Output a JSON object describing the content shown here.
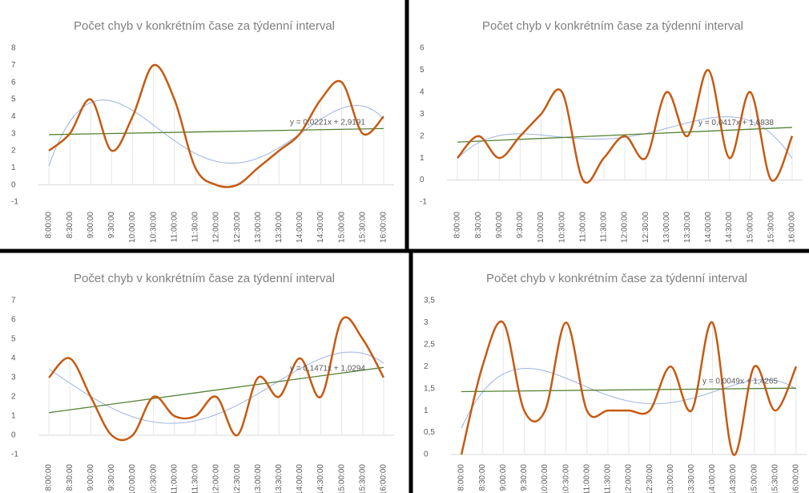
{
  "chart_data": [
    {
      "type": "line",
      "title": "Počet chyb v konkrétním čase za týdenní interval",
      "categories": [
        "8:00:00",
        "8:30:00",
        "9:00:00",
        "9:30:00",
        "10:00:00",
        "10:30:00",
        "11:00:00",
        "11:30:00",
        "12:00:00",
        "12:30:00",
        "13:00:00",
        "13:30:00",
        "14:00:00",
        "14:30:00",
        "15:00:00",
        "15:30:00",
        "16:00:00"
      ],
      "series": [
        {
          "color": "#c55a11",
          "values": [
            2,
            3,
            5,
            2,
            4,
            7,
            5,
            1,
            0,
            0,
            1,
            2,
            3,
            5,
            6,
            3,
            4
          ]
        }
      ],
      "ylim": [
        -1,
        8
      ],
      "yticks": [
        -1,
        0,
        1,
        2,
        3,
        4,
        5,
        6,
        7,
        8
      ],
      "grid": false,
      "trendline_label": "y = 0,0221x + 2,9191",
      "trendline_color": "#548235",
      "poly_color": "#9db3e0"
    },
    {
      "type": "line",
      "title": "Počet chyb v konkrétním čase za týdenní interval",
      "categories": [
        "8:00:00",
        "8:30:00",
        "9:00:00",
        "9:30:00",
        "10:00:00",
        "10:30:00",
        "11:00:00",
        "11:30:00",
        "12:00:00",
        "12:30:00",
        "13:00:00",
        "13:30:00",
        "14:00:00",
        "14:30:00",
        "15:00:00",
        "15:30:00",
        "16:00:00"
      ],
      "series": [
        {
          "color": "#c55a11",
          "values": [
            1,
            2,
            1,
            2,
            3,
            4,
            0,
            1,
            2,
            1,
            4,
            2,
            5,
            1,
            4,
            0,
            2
          ]
        }
      ],
      "ylim": [
        -1,
        6
      ],
      "yticks": [
        -1,
        0,
        1,
        2,
        3,
        4,
        5,
        6
      ],
      "grid": false,
      "trendline_label": "y = 0,0417x + 1,6838",
      "trendline_color": "#548235",
      "poly_color": "#9db3e0"
    },
    {
      "type": "line",
      "title": "Počet chyb v konkrétním čase za týdenní interval",
      "categories": [
        "8:00:00",
        "8:30:00",
        "9:00:00",
        "9:30:00",
        "10:00:00",
        "10:30:00",
        "11:00:00",
        "11:30:00",
        "12:00:00",
        "12:30:00",
        "13:00:00",
        "13:30:00",
        "14:00:00",
        "14:30:00",
        "15:00:00",
        "15:30:00",
        "16:00:00"
      ],
      "series": [
        {
          "color": "#c55a11",
          "values": [
            3,
            4,
            2,
            0,
            0,
            2,
            1,
            1,
            2,
            0,
            3,
            2,
            4,
            2,
            6,
            5,
            3
          ]
        }
      ],
      "ylim": [
        -1,
        7
      ],
      "yticks": [
        -1,
        0,
        1,
        2,
        3,
        4,
        5,
        6,
        7
      ],
      "grid": false,
      "trendline_label": "y = 0,1471x + 1,0294",
      "trendline_color": "#548235",
      "poly_color": "#9db3e0"
    },
    {
      "type": "line",
      "title": "Počet chyb v konkrétním čase za týdenní interval",
      "categories": [
        "8:00:00",
        "8:30:00",
        "9:00:00",
        "9:30:00",
        "10:00:00",
        "10:30:00",
        "11:00:00",
        "11:30:00",
        "12:00:00",
        "12:30:00",
        "13:00:00",
        "13:30:00",
        "14:00:00",
        "14:30:00",
        "15:00:00",
        "15:30:00",
        "16:00:00"
      ],
      "series": [
        {
          "color": "#c55a11",
          "values": [
            0,
            2,
            3,
            1,
            1,
            3,
            1,
            1,
            1,
            1,
            2,
            1,
            3,
            0,
            2,
            1,
            2
          ]
        }
      ],
      "ylim": [
        0,
        3.5
      ],
      "yticks": [
        0,
        {
          "value": 0.5,
          "label": "0,5"
        },
        1,
        {
          "value": 1.5,
          "label": "1,5"
        },
        2,
        {
          "value": 2.5,
          "label": "2,5"
        },
        3,
        {
          "value": 3.5,
          "label": "3,5"
        }
      ],
      "grid": false,
      "trendline_label": "y = 0,0049x + 1,4265",
      "trendline_color": "#548235",
      "poly_color": "#9db3e0"
    }
  ]
}
